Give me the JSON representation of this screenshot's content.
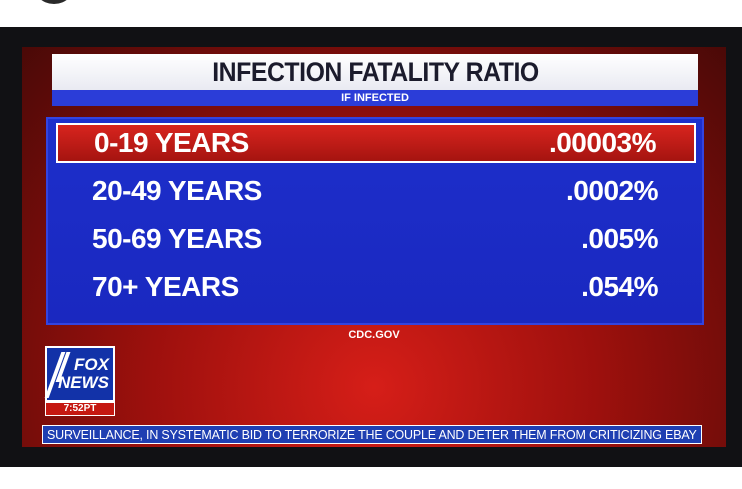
{
  "graphic": {
    "title": "INFECTION FATALITY RATIO",
    "subtitle": "IF INFECTED",
    "rows": [
      {
        "age": "0-19 YEARS",
        "value": ".00003%"
      },
      {
        "age": "20-49 YEARS",
        "value": ".0002%"
      },
      {
        "age": "50-69 YEARS",
        "value": ".005%"
      },
      {
        "age": "70+ YEARS",
        "value": ".054%"
      }
    ],
    "source": "CDC.GOV"
  },
  "logo": {
    "line1": "FOX",
    "line2": "NEWS",
    "time": "7:52PT"
  },
  "ticker": {
    "text": "SURVEILLANCE, IN SYSTEMATIC BID TO TERRORIZE THE COUPLE AND DETER THEM FROM CRITICIZING EBAY"
  },
  "colors": {
    "panel_blue": "#1d2fcb",
    "highlight_red": "#d8241e",
    "background_red": "#b3140f"
  }
}
